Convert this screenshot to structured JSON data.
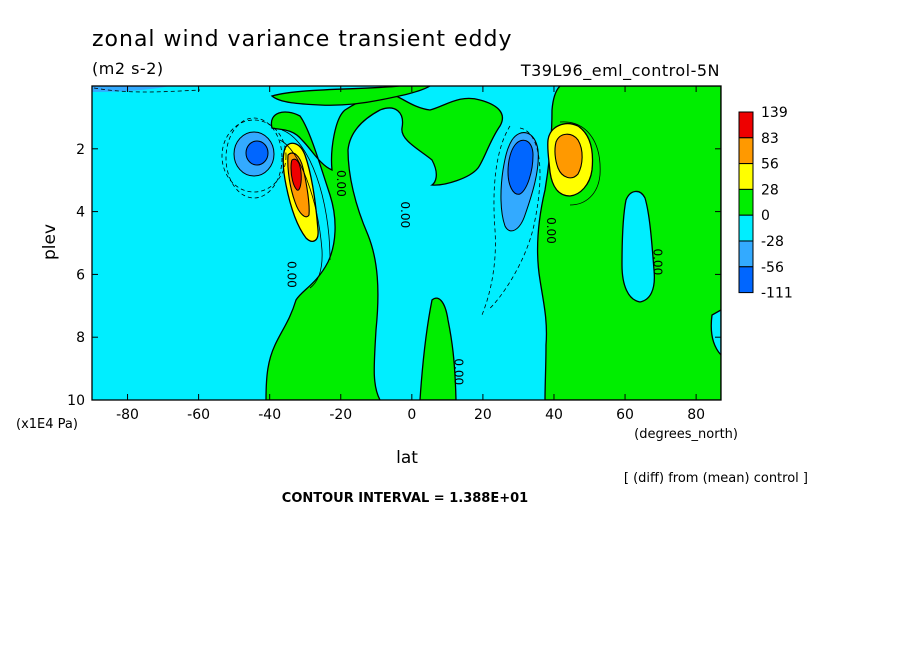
{
  "header": {
    "title": "zonal wind variance transient eddy",
    "units": "(m2 s-2)",
    "run_label": "T39L96_eml_control-5N"
  },
  "footer": {
    "comparison_note": "[ (diff) from (mean) control ]",
    "contour_interval": "CONTOUR INTERVAL = 1.388E+01"
  },
  "chart_data": {
    "type": "contour",
    "xlabel": "lat",
    "x_units": "(degrees_north)",
    "ylabel": "plev",
    "y_units": "(x1E4 Pa)",
    "xlim": [
      -90,
      87
    ],
    "ylim": [
      10,
      0
    ],
    "x_ticks": [
      -80,
      -60,
      -40,
      -20,
      0,
      20,
      40,
      60,
      80
    ],
    "y_ticks": [
      2,
      4,
      6,
      8,
      10
    ],
    "contour_labels": [
      "0.00",
      "0.00",
      "0.00",
      "0.00",
      "0.00",
      "0.00"
    ],
    "colorbar": {
      "labels": [
        "139",
        "83",
        "56",
        "28",
        "0",
        "-28",
        "-56",
        "-111"
      ],
      "colors": [
        "#ee0000",
        "#ff9900",
        "#ffff00",
        "#00ee00",
        "#00eeff",
        "#33aaff",
        "#0066ff"
      ]
    },
    "features": [
      {
        "kind": "max",
        "lat": -31,
        "plev": 2.9,
        "value": 139
      },
      {
        "kind": "max",
        "lat": 44,
        "plev": 2.1,
        "value": 83
      },
      {
        "kind": "min",
        "lat": -42,
        "plev": 2.2,
        "value": -56
      },
      {
        "kind": "min",
        "lat": 32,
        "plev": 2.8,
        "value": -111
      }
    ]
  }
}
